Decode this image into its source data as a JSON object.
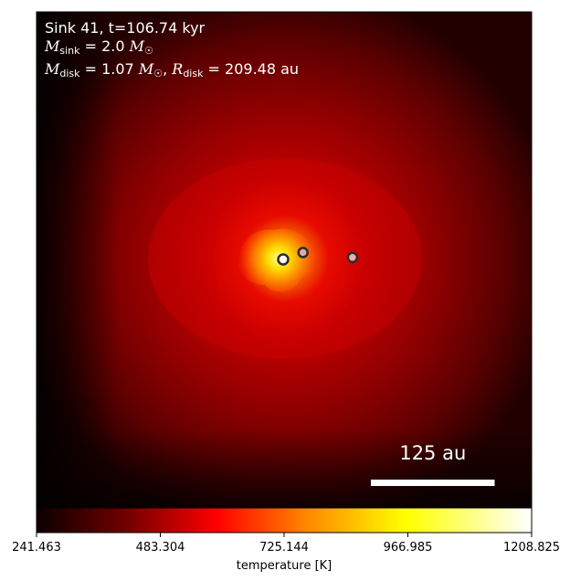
{
  "chart_data": {
    "type": "heatmap",
    "title_lines": [
      "Sink 41, t=106.74 kyr",
      "M_sink = 2.0 M_sun",
      "M_disk = 1.07 M_sun, R_disk = 209.48 au"
    ],
    "annotation": {
      "sink_id": "41",
      "time": "t=106.74 kyr",
      "m_sink": "2.0",
      "m_disk": "1.07",
      "r_disk": "209.48",
      "unit_mass": "M",
      "unit_length": "au"
    },
    "scale_bar": {
      "label": "125 au",
      "length_au": 125
    },
    "field_of_view_au": 500,
    "colorbar": {
      "label": "temperature [K]",
      "cmap": "hot",
      "vmin": 241.463,
      "vmax": 1208.825,
      "ticks": [
        "241.463",
        "483.304",
        "725.144",
        "966.985",
        "1208.825"
      ]
    },
    "sinks": [
      {
        "name": "primary",
        "x_au": 0,
        "y_au": 0,
        "fill": "#ffffff",
        "primary": true
      },
      {
        "name": "companion-1",
        "x_au": 20,
        "y_au": 7,
        "fill": "#e8a8a0",
        "primary": false
      },
      {
        "name": "companion-2",
        "x_au": 70,
        "y_au": 2,
        "fill": "#f0b0b0",
        "primary": false
      }
    ],
    "grid": false,
    "colors": {
      "background": "#ffffff",
      "text": "#ffffff",
      "sink_edge": "#2b2b2b"
    }
  }
}
